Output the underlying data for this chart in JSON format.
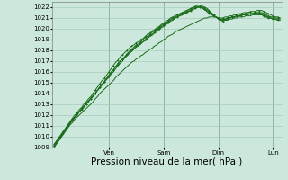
{
  "title": "Pression niveau de la mer( hPa )",
  "bg_color": "#cce8dc",
  "grid_color": "#a8ccbc",
  "line_color": "#1a6b1a",
  "ylim": [
    1009,
    1022.5
  ],
  "yticks": [
    1009,
    1010,
    1011,
    1012,
    1013,
    1014,
    1015,
    1016,
    1017,
    1018,
    1019,
    1020,
    1021,
    1022
  ],
  "day_labels": [
    "Ven",
    "Sam",
    "Dim",
    "Lun"
  ],
  "day_positions": [
    24,
    48,
    72,
    96
  ],
  "total_hours": 100,
  "xlabel_fontsize": 7.5,
  "tick_fontsize": 5.0,
  "series": [
    [
      1009.2,
      1009.5,
      1009.8,
      1010.1,
      1010.4,
      1010.7,
      1011.0,
      1011.3,
      1011.5,
      1011.8,
      1012.0,
      1012.3,
      1012.5,
      1012.8,
      1013.0,
      1013.3,
      1013.5,
      1013.8,
      1014.0,
      1014.3,
      1014.6,
      1014.9,
      1015.1,
      1015.4,
      1015.7,
      1016.0,
      1016.2,
      1016.5,
      1016.8,
      1017.0,
      1017.2,
      1017.4,
      1017.6,
      1017.8,
      1018.0,
      1018.2,
      1018.4,
      1018.5,
      1018.7,
      1018.8,
      1019.0,
      1019.2,
      1019.4,
      1019.5,
      1019.7,
      1019.9,
      1020.0,
      1020.2,
      1020.3,
      1020.5,
      1020.6,
      1020.8,
      1020.9,
      1021.0,
      1021.1,
      1021.2,
      1021.3,
      1021.4,
      1021.5,
      1021.6,
      1021.7,
      1021.8,
      1021.9,
      1022.0,
      1022.1,
      1022.1,
      1022.0,
      1021.9,
      1021.7,
      1021.5,
      1021.3,
      1021.1,
      1020.9,
      1020.8,
      1020.7,
      1020.8,
      1020.9,
      1021.0,
      1021.1,
      1021.1,
      1021.2,
      1021.2,
      1021.3,
      1021.3,
      1021.3,
      1021.4,
      1021.4,
      1021.4,
      1021.5,
      1021.5,
      1021.5,
      1021.5,
      1021.4,
      1021.3,
      1021.2,
      1021.1,
      1021.1,
      1021.0,
      1021.0,
      1021.0
    ],
    [
      1009.3,
      1009.6,
      1009.9,
      1010.2,
      1010.5,
      1010.8,
      1011.1,
      1011.4,
      1011.7,
      1012.0,
      1012.2,
      1012.5,
      1012.7,
      1013.0,
      1013.2,
      1013.5,
      1013.7,
      1014.0,
      1014.3,
      1014.6,
      1014.9,
      1015.2,
      1015.4,
      1015.7,
      1016.0,
      1016.3,
      1016.6,
      1016.9,
      1017.1,
      1017.4,
      1017.6,
      1017.8,
      1018.0,
      1018.2,
      1018.4,
      1018.5,
      1018.7,
      1018.8,
      1019.0,
      1019.1,
      1019.3,
      1019.5,
      1019.6,
      1019.8,
      1019.9,
      1020.1,
      1020.2,
      1020.4,
      1020.5,
      1020.7,
      1020.8,
      1021.0,
      1021.1,
      1021.2,
      1021.3,
      1021.4,
      1021.5,
      1021.6,
      1021.7,
      1021.8,
      1021.9,
      1022.0,
      1022.1,
      1022.1,
      1022.0,
      1021.9,
      1021.8,
      1021.6,
      1021.4,
      1021.3,
      1021.2,
      1021.1,
      1021.0,
      1021.0,
      1021.0,
      1021.1,
      1021.1,
      1021.2,
      1021.2,
      1021.3,
      1021.3,
      1021.4,
      1021.4,
      1021.5,
      1021.5,
      1021.5,
      1021.6,
      1021.6,
      1021.6,
      1021.7,
      1021.7,
      1021.7,
      1021.6,
      1021.5,
      1021.4,
      1021.3,
      1021.2,
      1021.1,
      1021.1,
      1021.0
    ],
    [
      1009.0,
      1009.3,
      1009.6,
      1009.9,
      1010.2,
      1010.5,
      1010.8,
      1011.1,
      1011.3,
      1011.6,
      1011.8,
      1012.0,
      1012.2,
      1012.4,
      1012.6,
      1012.8,
      1013.0,
      1013.2,
      1013.5,
      1013.7,
      1014.0,
      1014.2,
      1014.4,
      1014.6,
      1014.8,
      1015.0,
      1015.2,
      1015.5,
      1015.7,
      1015.9,
      1016.1,
      1016.3,
      1016.5,
      1016.7,
      1016.9,
      1017.0,
      1017.2,
      1017.3,
      1017.5,
      1017.6,
      1017.8,
      1017.9,
      1018.1,
      1018.2,
      1018.4,
      1018.5,
      1018.7,
      1018.8,
      1019.0,
      1019.1,
      1019.3,
      1019.4,
      1019.5,
      1019.7,
      1019.8,
      1019.9,
      1020.0,
      1020.1,
      1020.2,
      1020.3,
      1020.4,
      1020.5,
      1020.6,
      1020.7,
      1020.8,
      1020.9,
      1021.0,
      1021.0,
      1021.1,
      1021.1,
      1021.1,
      1021.1,
      1021.0,
      1020.9,
      1020.8,
      1020.8,
      1020.8,
      1020.9,
      1020.9,
      1021.0,
      1021.0,
      1021.1,
      1021.1,
      1021.1,
      1021.2,
      1021.2,
      1021.2,
      1021.3,
      1021.3,
      1021.3,
      1021.3,
      1021.3,
      1021.2,
      1021.1,
      1021.0,
      1021.0,
      1020.9,
      1020.9,
      1020.9,
      1020.9
    ],
    [
      1009.1,
      1009.4,
      1009.7,
      1010.0,
      1010.3,
      1010.6,
      1010.9,
      1011.2,
      1011.5,
      1011.8,
      1012.0,
      1012.3,
      1012.5,
      1012.7,
      1013.0,
      1013.2,
      1013.5,
      1013.7,
      1014.0,
      1014.3,
      1014.5,
      1014.8,
      1015.0,
      1015.3,
      1015.5,
      1015.8,
      1016.0,
      1016.3,
      1016.6,
      1016.8,
      1017.0,
      1017.3,
      1017.5,
      1017.7,
      1017.9,
      1018.1,
      1018.3,
      1018.4,
      1018.6,
      1018.8,
      1018.9,
      1019.1,
      1019.3,
      1019.4,
      1019.6,
      1019.8,
      1019.9,
      1020.1,
      1020.2,
      1020.4,
      1020.5,
      1020.7,
      1020.8,
      1021.0,
      1021.1,
      1021.2,
      1021.3,
      1021.4,
      1021.5,
      1021.6,
      1021.7,
      1021.8,
      1021.9,
      1022.0,
      1022.1,
      1022.0,
      1021.9,
      1021.8,
      1021.6,
      1021.4,
      1021.2,
      1021.1,
      1020.9,
      1020.8,
      1020.8,
      1020.9,
      1021.0,
      1021.0,
      1021.1,
      1021.1,
      1021.2,
      1021.2,
      1021.3,
      1021.3,
      1021.3,
      1021.4,
      1021.4,
      1021.4,
      1021.4,
      1021.5,
      1021.5,
      1021.4,
      1021.3,
      1021.2,
      1021.1,
      1021.0,
      1020.9,
      1020.9,
      1020.8,
      1020.8
    ],
    [
      1009.2,
      1009.5,
      1009.8,
      1010.1,
      1010.4,
      1010.7,
      1011.0,
      1011.3,
      1011.6,
      1011.8,
      1012.1,
      1012.3,
      1012.6,
      1012.8,
      1013.0,
      1013.3,
      1013.5,
      1013.8,
      1014.0,
      1014.3,
      1014.6,
      1014.8,
      1015.1,
      1015.4,
      1015.6,
      1015.9,
      1016.2,
      1016.5,
      1016.7,
      1017.0,
      1017.2,
      1017.4,
      1017.7,
      1017.9,
      1018.1,
      1018.3,
      1018.5,
      1018.6,
      1018.8,
      1019.0,
      1019.2,
      1019.3,
      1019.5,
      1019.7,
      1019.8,
      1020.0,
      1020.1,
      1020.3,
      1020.4,
      1020.6,
      1020.7,
      1020.9,
      1021.0,
      1021.1,
      1021.2,
      1021.3,
      1021.4,
      1021.5,
      1021.6,
      1021.7,
      1021.8,
      1021.9,
      1022.0,
      1022.0,
      1022.0,
      1021.9,
      1021.8,
      1021.7,
      1021.5,
      1021.4,
      1021.2,
      1021.1,
      1021.0,
      1020.9,
      1020.9,
      1020.9,
      1021.0,
      1021.0,
      1021.1,
      1021.1,
      1021.2,
      1021.2,
      1021.2,
      1021.3,
      1021.3,
      1021.3,
      1021.4,
      1021.4,
      1021.4,
      1021.4,
      1021.4,
      1021.3,
      1021.2,
      1021.1,
      1021.0,
      1021.0,
      1020.9,
      1020.9,
      1020.8,
      1020.8
    ]
  ],
  "marker_series": [
    0,
    1,
    4
  ],
  "plain_series": [
    2,
    3
  ]
}
